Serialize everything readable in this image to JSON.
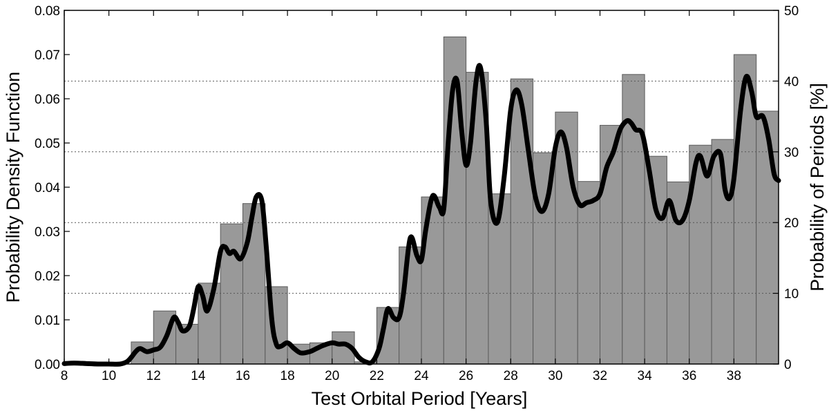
{
  "chart_data": {
    "type": "bar",
    "title": "",
    "xlabel": "Test Orbital Period [Years]",
    "ylabel": "Probability Density Function",
    "ylabel_right": "Probability of Periods [%]",
    "xlim": [
      8,
      40
    ],
    "ylim": [
      0,
      0.08
    ],
    "ylim_right": [
      0,
      50
    ],
    "x_ticks": [
      8,
      10,
      12,
      14,
      16,
      18,
      20,
      22,
      24,
      26,
      28,
      30,
      32,
      34,
      36,
      38
    ],
    "x_tick_labels": [
      "8",
      "10",
      "12",
      "14",
      "16",
      "18",
      "20",
      "22",
      "24",
      "26",
      "28",
      "30",
      "32",
      "34",
      "36",
      "38"
    ],
    "y_ticks": [
      0,
      0.01,
      0.02,
      0.03,
      0.04,
      0.05,
      0.06,
      0.07,
      0.08
    ],
    "y_tick_labels": [
      "0.00",
      "0.01",
      "0.02",
      "0.03",
      "0.04",
      "0.05",
      "0.06",
      "0.07",
      "0.08"
    ],
    "y_right_ticks": [
      0,
      10,
      20,
      30,
      40,
      50
    ],
    "y_right_tick_labels": [
      "0",
      "10",
      "20",
      "30",
      "40",
      "50"
    ],
    "grid": "horizontal dotted at right-axis ticks",
    "bar_width": 1.0,
    "bar_color": "#999999",
    "line_color": "#000000",
    "histogram": {
      "bin_starts": [
        11,
        12,
        13,
        14,
        15,
        16,
        17,
        18,
        19,
        20,
        21,
        22,
        23,
        24,
        25,
        26,
        27,
        28,
        29,
        30,
        31,
        32,
        33,
        34,
        35,
        36,
        37,
        38,
        39
      ],
      "values": [
        0.005,
        0.012,
        0.009,
        0.0183,
        0.0317,
        0.0363,
        0.0175,
        0.0045,
        0.0048,
        0.0073,
        0.0005,
        0.0128,
        0.0265,
        0.0378,
        0.074,
        0.066,
        0.0385,
        0.0645,
        0.0478,
        0.057,
        0.0413,
        0.054,
        0.0655,
        0.047,
        0.0412,
        0.0495,
        0.0508,
        0.07,
        0.0572
      ]
    },
    "series": [
      {
        "x": [
          8.0,
          8.3,
          8.6,
          9.0,
          9.5,
          10.0,
          10.5,
          10.8,
          11.0,
          11.2,
          11.4,
          11.7,
          12.0,
          12.3,
          12.6,
          12.9,
          13.1,
          13.3,
          13.6,
          13.8,
          14.0,
          14.2,
          14.4,
          14.7,
          15.0,
          15.2,
          15.4,
          15.6,
          15.9,
          16.2,
          16.4,
          16.6,
          16.85,
          17.05,
          17.3,
          17.5,
          17.7,
          18.0,
          18.3,
          18.6,
          19.0,
          19.3,
          19.6,
          20.0,
          20.3,
          20.6,
          20.9,
          21.2,
          21.5,
          21.8,
          22.1,
          22.3,
          22.5,
          22.75,
          23.0,
          23.2,
          23.5,
          23.8,
          24.0,
          24.2,
          24.5,
          24.8,
          25.0,
          25.2,
          25.4,
          25.6,
          25.8,
          26.0,
          26.2,
          26.45,
          26.65,
          26.9,
          27.1,
          27.4,
          27.7,
          28.0,
          28.25,
          28.5,
          28.8,
          29.1,
          29.4,
          29.7,
          30.0,
          30.25,
          30.5,
          30.8,
          31.1,
          31.4,
          31.7,
          32.0,
          32.3,
          32.6,
          32.9,
          33.2,
          33.4,
          33.6,
          33.9,
          34.2,
          34.5,
          34.8,
          35.1,
          35.4,
          35.7,
          36.0,
          36.3,
          36.5,
          36.8,
          37.1,
          37.4,
          37.6,
          37.8,
          38.0,
          38.3,
          38.55,
          38.8,
          39.0,
          39.3,
          39.55,
          39.8,
          40.0
        ],
        "y": [
          0.0001,
          0.0002,
          0.0002,
          0.0001,
          0.0,
          0.0,
          0.0,
          0.0005,
          0.0015,
          0.0028,
          0.0035,
          0.0028,
          0.0032,
          0.0038,
          0.0065,
          0.0105,
          0.0095,
          0.0075,
          0.0085,
          0.0125,
          0.0175,
          0.0155,
          0.012,
          0.017,
          0.0255,
          0.0265,
          0.025,
          0.0255,
          0.0238,
          0.0275,
          0.033,
          0.0378,
          0.037,
          0.0265,
          0.01,
          0.0045,
          0.004,
          0.0048,
          0.0035,
          0.0025,
          0.0028,
          0.0035,
          0.0042,
          0.0048,
          0.0045,
          0.0045,
          0.0035,
          0.0015,
          0.0005,
          0.0005,
          0.0035,
          0.008,
          0.0125,
          0.0105,
          0.0105,
          0.016,
          0.0285,
          0.0245,
          0.0235,
          0.0305,
          0.038,
          0.0355,
          0.035,
          0.05,
          0.062,
          0.064,
          0.053,
          0.045,
          0.05,
          0.064,
          0.067,
          0.055,
          0.037,
          0.032,
          0.042,
          0.0575,
          0.062,
          0.0585,
          0.048,
          0.038,
          0.0345,
          0.0385,
          0.049,
          0.0525,
          0.049,
          0.04,
          0.036,
          0.0365,
          0.037,
          0.0385,
          0.0445,
          0.048,
          0.053,
          0.055,
          0.0545,
          0.053,
          0.052,
          0.044,
          0.035,
          0.033,
          0.037,
          0.0325,
          0.0325,
          0.037,
          0.0455,
          0.047,
          0.0425,
          0.047,
          0.0475,
          0.0395,
          0.0375,
          0.042,
          0.0575,
          0.065,
          0.0615,
          0.056,
          0.056,
          0.051,
          0.043,
          0.0415
        ]
      }
    ]
  }
}
